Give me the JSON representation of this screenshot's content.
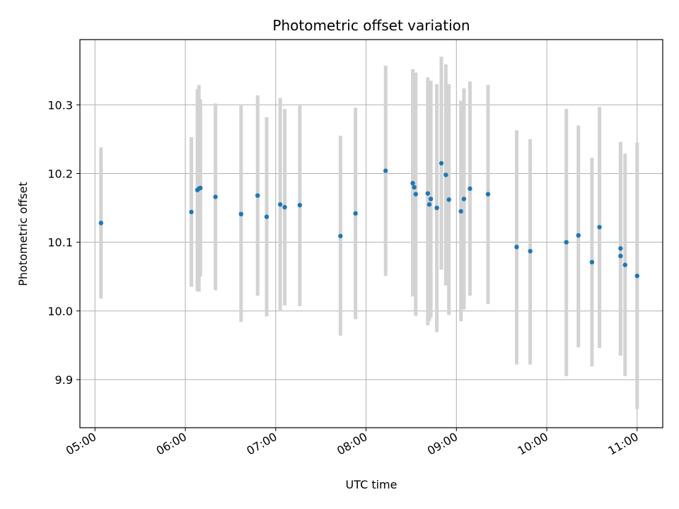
{
  "chart_data": {
    "type": "scatter",
    "title": "Photometric offset variation",
    "xlabel": "UTC time",
    "ylabel": "Photometric offset",
    "xlim": [
      "04:50",
      "11:17"
    ],
    "ylim": [
      9.83,
      10.395
    ],
    "x_ticks": [
      "05:00",
      "06:00",
      "07:00",
      "08:00",
      "09:00",
      "10:00",
      "11:00"
    ],
    "y_ticks": [
      "9.9",
      "10.0",
      "10.1",
      "10.2",
      "10.3"
    ],
    "grid": true,
    "colors": {
      "point": "#1f77b4",
      "errorbar": "#d3d3d3",
      "grid": "#b0b0b0"
    },
    "series": [
      {
        "points": [
          {
            "t": "05:04",
            "y": 10.128,
            "lo": 10.018,
            "hi": 10.238
          },
          {
            "t": "06:04",
            "y": 10.144,
            "lo": 10.035,
            "hi": 10.253
          },
          {
            "t": "06:08",
            "y": 10.176,
            "lo": 10.029,
            "hi": 10.323
          },
          {
            "t": "06:09",
            "y": 10.178,
            "lo": 10.028,
            "hi": 10.329
          },
          {
            "t": "06:10",
            "y": 10.179,
            "lo": 10.05,
            "hi": 10.308
          },
          {
            "t": "06:20",
            "y": 10.166,
            "lo": 10.03,
            "hi": 10.302
          },
          {
            "t": "06:37",
            "y": 10.141,
            "lo": 9.984,
            "hi": 10.299
          },
          {
            "t": "06:48",
            "y": 10.168,
            "lo": 10.022,
            "hi": 10.314
          },
          {
            "t": "06:54",
            "y": 10.137,
            "lo": 9.992,
            "hi": 10.282
          },
          {
            "t": "07:03",
            "y": 10.155,
            "lo": 10.001,
            "hi": 10.31
          },
          {
            "t": "07:06",
            "y": 10.151,
            "lo": 10.008,
            "hi": 10.294
          },
          {
            "t": "07:16",
            "y": 10.154,
            "lo": 10.007,
            "hi": 10.299
          },
          {
            "t": "07:43",
            "y": 10.109,
            "lo": 9.964,
            "hi": 10.255
          },
          {
            "t": "07:53",
            "y": 10.142,
            "lo": 9.988,
            "hi": 10.296
          },
          {
            "t": "08:13",
            "y": 10.204,
            "lo": 10.051,
            "hi": 10.357
          },
          {
            "t": "08:31",
            "y": 10.186,
            "lo": 10.021,
            "hi": 10.352
          },
          {
            "t": "08:32",
            "y": 10.18,
            "lo": 10.03,
            "hi": 10.33
          },
          {
            "t": "08:33",
            "y": 10.17,
            "lo": 9.993,
            "hi": 10.347
          },
          {
            "t": "08:41",
            "y": 10.171,
            "lo": 9.979,
            "hi": 10.34
          },
          {
            "t": "08:42",
            "y": 10.155,
            "lo": 9.985,
            "hi": 10.327
          },
          {
            "t": "08:43",
            "y": 10.163,
            "lo": 9.99,
            "hi": 10.335
          },
          {
            "t": "08:47",
            "y": 10.15,
            "lo": 9.969,
            "hi": 10.33
          },
          {
            "t": "08:50",
            "y": 10.215,
            "lo": 10.06,
            "hi": 10.37
          },
          {
            "t": "08:53",
            "y": 10.198,
            "lo": 10.037,
            "hi": 10.359
          },
          {
            "t": "08:55",
            "y": 10.162,
            "lo": 9.994,
            "hi": 10.33
          },
          {
            "t": "09:03",
            "y": 10.145,
            "lo": 9.985,
            "hi": 10.306
          },
          {
            "t": "09:05",
            "y": 10.163,
            "lo": 10.002,
            "hi": 10.324
          },
          {
            "t": "09:09",
            "y": 10.178,
            "lo": 10.022,
            "hi": 10.334
          },
          {
            "t": "09:21",
            "y": 10.17,
            "lo": 10.01,
            "hi": 10.329
          },
          {
            "t": "09:40",
            "y": 10.093,
            "lo": 9.922,
            "hi": 10.263
          },
          {
            "t": "09:49",
            "y": 10.087,
            "lo": 9.922,
            "hi": 10.25
          },
          {
            "t": "10:13",
            "y": 10.1,
            "lo": 9.905,
            "hi": 10.294
          },
          {
            "t": "10:21",
            "y": 10.11,
            "lo": 9.947,
            "hi": 10.27
          },
          {
            "t": "10:30",
            "y": 10.071,
            "lo": 9.919,
            "hi": 10.223
          },
          {
            "t": "10:35",
            "y": 10.122,
            "lo": 9.946,
            "hi": 10.297
          },
          {
            "t": "10:49",
            "y": 10.091,
            "lo": 9.935,
            "hi": 10.246
          },
          {
            "t": "10:49",
            "y": 10.08,
            "lo": 9.935,
            "hi": 10.24
          },
          {
            "t": "10:52",
            "y": 10.067,
            "lo": 9.905,
            "hi": 10.229
          },
          {
            "t": "11:00",
            "y": 10.051,
            "lo": 9.857,
            "hi": 10.245
          }
        ]
      }
    ]
  }
}
